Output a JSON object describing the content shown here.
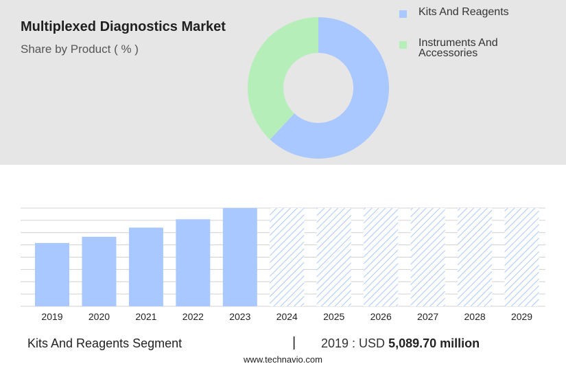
{
  "header": {
    "title": "Multiplexed Diagnostics Market",
    "subtitle": "Share by Product ( % )"
  },
  "colors": {
    "kits": "#a8c8ff",
    "instruments": "#b6eeb9",
    "hatch": "#a8c8ff",
    "grid": "#d0d0d0",
    "top_panel": "#e6e6e6"
  },
  "chart_data": [
    {
      "type": "pie",
      "donut": true,
      "legend_position": "top-right",
      "labels": [
        "Kits And Reagents",
        "Instruments And Accessories"
      ],
      "values": [
        62,
        38
      ],
      "colors": [
        "#a8c8ff",
        "#b6eeb9"
      ]
    },
    {
      "type": "bar",
      "categories": [
        "2019",
        "2020",
        "2021",
        "2022",
        "2023",
        "2024",
        "2025",
        "2026",
        "2027",
        "2028",
        "2029"
      ],
      "values": [
        5089.7,
        5588,
        6330,
        7000,
        7900,
        7900,
        7900,
        7900,
        7900,
        7900,
        7900
      ],
      "forecast_from": "2024",
      "ylim": [
        0,
        7900
      ],
      "grid": true,
      "xlabel": "",
      "ylabel": ""
    }
  ],
  "footer": {
    "segment": "Kits And Reagents Segment",
    "separator": "|",
    "value_prefix": "2019 : USD",
    "value_bold": "5,089.70 million",
    "source": "www.technavio.com"
  }
}
